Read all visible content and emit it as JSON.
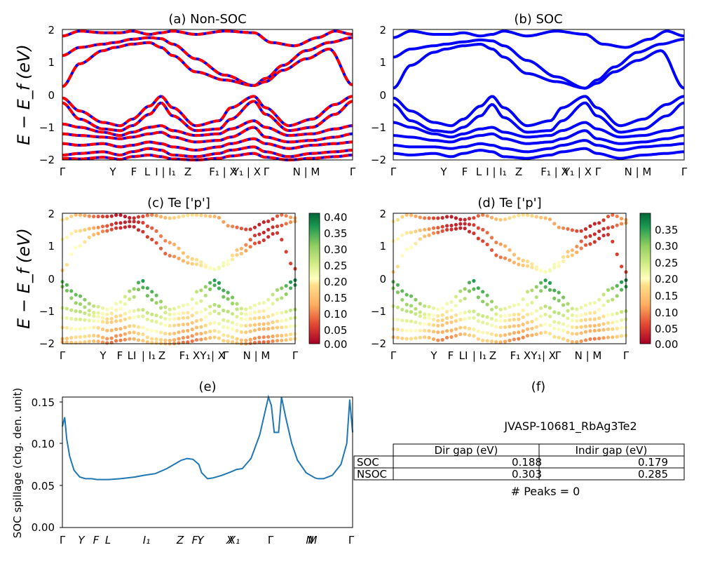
{
  "chart_data": [
    {
      "id": "a",
      "type": "line",
      "title": "(a) Non-SOC",
      "ylabel": "E − E_f (eV)",
      "ylim": [
        -2,
        2
      ],
      "yticks": [
        "2",
        "1",
        "0",
        "−1",
        "−2"
      ],
      "xticks": [
        "Γ",
        "Y",
        "F",
        "L",
        "I | I₁",
        "Z",
        "F₁ | X",
        "Y₁ | X",
        "Γ",
        "N | M",
        "Γ"
      ],
      "series": [
        {
          "color": "#0000ff",
          "style": "solid",
          "kind": "spin-up"
        },
        {
          "color": "#ff0000",
          "style": "dashed",
          "kind": "spin-down"
        }
      ],
      "bands": [
        {
          "x": [
            0.0,
            0.06,
            0.14,
            0.18,
            0.24,
            0.3,
            0.34,
            0.38,
            0.46,
            0.56,
            0.66,
            0.7,
            0.76,
            0.84,
            0.92,
            1.0
          ],
          "y": [
            1.2,
            1.45,
            1.55,
            1.6,
            1.7,
            1.75,
            1.72,
            1.55,
            1.1,
            0.6,
            0.28,
            0.5,
            0.9,
            1.35,
            1.6,
            1.75
          ]
        },
        {
          "x": [
            0.0,
            0.06,
            0.14,
            0.18,
            0.24,
            0.3,
            0.34,
            0.38,
            0.46,
            0.56,
            0.66,
            0.7,
            0.76,
            0.84,
            0.92,
            1.0
          ],
          "y": [
            0.25,
            0.95,
            1.35,
            1.45,
            1.55,
            1.6,
            1.45,
            1.2,
            0.7,
            0.45,
            0.28,
            0.4,
            0.75,
            1.1,
            1.4,
            0.3
          ]
        },
        {
          "x": [
            0.0,
            0.06,
            0.14,
            0.2,
            0.24,
            0.3,
            0.34,
            0.38,
            0.46,
            0.56,
            0.66,
            0.72,
            0.8,
            0.88,
            0.94,
            1.0
          ],
          "y": [
            1.8,
            1.95,
            1.9,
            1.9,
            1.95,
            1.85,
            1.9,
            1.95,
            1.85,
            1.95,
            1.9,
            1.6,
            1.5,
            1.75,
            1.95,
            1.85
          ]
        },
        {
          "x": [
            0.0,
            0.06,
            0.14,
            0.2,
            0.24,
            0.3,
            0.34,
            0.38,
            0.46,
            0.54,
            0.58,
            0.66,
            0.7,
            0.78,
            0.86,
            0.94,
            1.0
          ],
          "y": [
            -0.1,
            -0.5,
            -0.85,
            -0.95,
            -0.75,
            -0.35,
            -0.05,
            -0.4,
            -0.95,
            -0.8,
            -0.4,
            -0.05,
            -0.4,
            -0.95,
            -0.75,
            -0.3,
            -0.05
          ]
        },
        {
          "x": [
            0.0,
            0.06,
            0.14,
            0.2,
            0.24,
            0.3,
            0.34,
            0.38,
            0.46,
            0.54,
            0.58,
            0.66,
            0.7,
            0.78,
            0.86,
            0.94,
            1.0
          ],
          "y": [
            -0.25,
            -0.75,
            -1.05,
            -1.1,
            -0.95,
            -0.6,
            -0.25,
            -0.65,
            -1.1,
            -1.05,
            -0.75,
            -0.2,
            -0.6,
            -1.1,
            -1.0,
            -0.6,
            -0.2
          ]
        },
        {
          "x": [
            0.0,
            0.06,
            0.14,
            0.2,
            0.24,
            0.3,
            0.34,
            0.38,
            0.46,
            0.54,
            0.58,
            0.66,
            0.7,
            0.78,
            0.86,
            0.94,
            1.0
          ],
          "y": [
            -0.9,
            -1.0,
            -1.15,
            -1.25,
            -1.15,
            -1.0,
            -0.95,
            -1.1,
            -1.25,
            -1.2,
            -1.05,
            -0.8,
            -1.0,
            -1.25,
            -1.2,
            -1.05,
            -0.95
          ]
        },
        {
          "x": [
            0.0,
            0.06,
            0.14,
            0.2,
            0.24,
            0.3,
            0.34,
            0.38,
            0.46,
            0.54,
            0.58,
            0.66,
            0.7,
            0.78,
            0.86,
            0.94,
            1.0
          ],
          "y": [
            -1.2,
            -1.25,
            -1.3,
            -1.35,
            -1.3,
            -1.2,
            -1.15,
            -1.3,
            -1.45,
            -1.4,
            -1.3,
            -1.0,
            -1.3,
            -1.45,
            -1.4,
            -1.3,
            -1.2
          ]
        },
        {
          "x": [
            0.0,
            0.06,
            0.14,
            0.2,
            0.24,
            0.3,
            0.34,
            0.38,
            0.46,
            0.54,
            0.58,
            0.66,
            0.7,
            0.78,
            0.86,
            0.94,
            1.0
          ],
          "y": [
            -1.5,
            -1.55,
            -1.5,
            -1.6,
            -1.55,
            -1.45,
            -1.5,
            -1.6,
            -1.7,
            -1.6,
            -1.5,
            -1.35,
            -1.5,
            -1.65,
            -1.55,
            -1.5,
            -1.45
          ]
        },
        {
          "x": [
            0.0,
            0.06,
            0.14,
            0.2,
            0.24,
            0.3,
            0.34,
            0.38,
            0.46,
            0.54,
            0.58,
            0.66,
            0.7,
            0.78,
            0.86,
            0.94,
            1.0
          ],
          "y": [
            -1.85,
            -1.8,
            -1.75,
            -1.85,
            -1.75,
            -1.65,
            -1.7,
            -1.85,
            -1.9,
            -1.8,
            -1.7,
            -1.6,
            -1.75,
            -1.9,
            -1.8,
            -1.75,
            -1.7
          ]
        },
        {
          "x": [
            0.0,
            0.06,
            0.14,
            0.2,
            0.24,
            0.3,
            0.34,
            0.38,
            0.46,
            0.54,
            0.58,
            0.66,
            0.7,
            0.78,
            0.86,
            0.94,
            1.0
          ],
          "y": [
            -1.95,
            -1.97,
            -1.92,
            -1.98,
            -1.9,
            -1.85,
            -1.9,
            -1.97,
            -2.0,
            -1.95,
            -1.88,
            -1.8,
            -1.92,
            -2.0,
            -1.95,
            -1.9,
            -1.85
          ]
        }
      ]
    },
    {
      "id": "b",
      "type": "line",
      "title": "(b) SOC",
      "ylim": [
        -2,
        2
      ],
      "yticks": [
        "2",
        "1",
        "0",
        "−1",
        "−2"
      ],
      "xticks": [
        "Γ",
        "Y",
        "F",
        "L",
        "I | I₁",
        "Z",
        "F₁ | X",
        "Y₁ | X",
        "Γ",
        "N | M",
        "Γ"
      ],
      "series": [
        {
          "color": "#0000ff",
          "style": "solid"
        }
      ],
      "bands": [
        {
          "x": [
            0.0,
            0.06,
            0.14,
            0.18,
            0.24,
            0.3,
            0.34,
            0.38,
            0.46,
            0.56,
            0.66,
            0.7,
            0.76,
            0.84,
            0.92,
            1.0
          ],
          "y": [
            1.15,
            1.4,
            1.5,
            1.55,
            1.62,
            1.68,
            1.65,
            1.5,
            1.05,
            0.55,
            0.2,
            0.45,
            0.85,
            1.3,
            1.55,
            1.7
          ]
        },
        {
          "x": [
            0.0,
            0.06,
            0.14,
            0.18,
            0.24,
            0.3,
            0.34,
            0.38,
            0.46,
            0.56,
            0.66,
            0.7,
            0.76,
            0.84,
            0.92,
            1.0
          ],
          "y": [
            0.2,
            0.9,
            1.3,
            1.4,
            1.5,
            1.55,
            1.4,
            1.15,
            0.65,
            0.4,
            0.2,
            0.35,
            0.7,
            1.05,
            1.35,
            0.2
          ]
        },
        {
          "x": [
            0.0,
            0.06,
            0.14,
            0.2,
            0.24,
            0.3,
            0.34,
            0.38,
            0.46,
            0.56,
            0.66,
            0.72,
            0.8,
            0.88,
            0.94,
            1.0
          ],
          "y": [
            1.75,
            1.95,
            1.85,
            1.85,
            1.9,
            1.8,
            1.85,
            1.95,
            1.8,
            1.95,
            1.85,
            1.55,
            1.45,
            1.7,
            1.95,
            1.8
          ]
        },
        {
          "x": [
            0.0,
            0.06,
            0.14,
            0.2,
            0.24,
            0.3,
            0.34,
            0.38,
            0.46,
            0.54,
            0.58,
            0.66,
            0.7,
            0.78,
            0.86,
            0.94,
            1.0
          ],
          "y": [
            -0.1,
            -0.5,
            -0.85,
            -0.95,
            -0.75,
            -0.35,
            -0.05,
            -0.4,
            -0.95,
            -0.8,
            -0.4,
            -0.05,
            -0.4,
            -0.95,
            -0.75,
            -0.3,
            -0.05
          ]
        },
        {
          "x": [
            0.0,
            0.06,
            0.14,
            0.2,
            0.24,
            0.3,
            0.34,
            0.38,
            0.46,
            0.54,
            0.58,
            0.66,
            0.7,
            0.78,
            0.86,
            0.94,
            1.0
          ],
          "y": [
            -0.3,
            -0.8,
            -1.1,
            -1.15,
            -1.0,
            -0.65,
            -0.3,
            -0.7,
            -1.15,
            -1.1,
            -0.8,
            -0.25,
            -0.65,
            -1.15,
            -1.05,
            -0.65,
            -0.25
          ]
        },
        {
          "x": [
            0.0,
            0.06,
            0.14,
            0.2,
            0.24,
            0.3,
            0.34,
            0.38,
            0.46,
            0.54,
            0.58,
            0.66,
            0.7,
            0.78,
            0.86,
            0.94,
            1.0
          ],
          "y": [
            -0.85,
            -1.0,
            -1.2,
            -1.3,
            -1.2,
            -1.05,
            -1.0,
            -1.15,
            -1.3,
            -1.25,
            -1.1,
            -0.85,
            -1.05,
            -1.3,
            -1.25,
            -1.1,
            -1.0
          ]
        },
        {
          "x": [
            0.0,
            0.06,
            0.14,
            0.2,
            0.24,
            0.3,
            0.34,
            0.38,
            0.46,
            0.54,
            0.58,
            0.66,
            0.7,
            0.78,
            0.86,
            0.94,
            1.0
          ],
          "y": [
            -1.25,
            -1.3,
            -1.4,
            -1.45,
            -1.35,
            -1.25,
            -1.2,
            -1.35,
            -1.5,
            -1.45,
            -1.35,
            -1.1,
            -1.35,
            -1.5,
            -1.45,
            -1.35,
            -1.25
          ]
        },
        {
          "x": [
            0.0,
            0.06,
            0.14,
            0.2,
            0.24,
            0.3,
            0.34,
            0.38,
            0.46,
            0.54,
            0.58,
            0.66,
            0.7,
            0.78,
            0.86,
            0.94,
            1.0
          ],
          "y": [
            -1.55,
            -1.6,
            -1.6,
            -1.65,
            -1.6,
            -1.5,
            -1.55,
            -1.65,
            -1.75,
            -1.65,
            -1.55,
            -1.4,
            -1.55,
            -1.7,
            -1.6,
            -1.55,
            -1.5
          ]
        },
        {
          "x": [
            0.0,
            0.06,
            0.14,
            0.2,
            0.24,
            0.3,
            0.34,
            0.38,
            0.46,
            0.54,
            0.58,
            0.66,
            0.7,
            0.78,
            0.86,
            0.94,
            1.0
          ],
          "y": [
            -1.8,
            -1.85,
            -1.8,
            -1.9,
            -1.8,
            -1.7,
            -1.75,
            -1.9,
            -1.95,
            -1.85,
            -1.75,
            -1.65,
            -1.8,
            -1.95,
            -1.85,
            -1.8,
            -1.75
          ]
        }
      ]
    },
    {
      "id": "c",
      "type": "scatter",
      "title": "(c)  Te ['p']",
      "ylabel": "E − E_f (eV)",
      "ylim": [
        -2,
        2
      ],
      "yticks": [
        "2",
        "1",
        "0",
        "−1",
        "−2"
      ],
      "xticks": [
        "Γ",
        "Y",
        "F",
        "LI",
        "| I₁",
        "Z",
        "F₁",
        "X",
        "Y₁",
        "| X",
        "Γ",
        "N | M",
        "Γ"
      ],
      "colormap": "RdYlGn",
      "clim": [
        0.0,
        0.41
      ],
      "colorbar_ticks": [
        "0.40",
        "0.35",
        "0.30",
        "0.25",
        "0.20",
        "0.15",
        "0.10",
        "0.05",
        "0.00"
      ]
    },
    {
      "id": "d",
      "type": "scatter",
      "title": "(d) Te ['p']",
      "ylim": [
        -2,
        2
      ],
      "yticks": [
        "2",
        "1",
        "0",
        "−1",
        "−2"
      ],
      "xticks": [
        "Γ",
        "Y",
        "F",
        "LI",
        "| I₁",
        "Z",
        "F₁",
        "X",
        "Y₁",
        "| X",
        "Γ",
        "N | M",
        "Γ"
      ],
      "colormap": "RdYlGn",
      "clim": [
        0.0,
        0.39
      ],
      "colorbar_ticks": [
        "0.35",
        "0.30",
        "0.25",
        "0.20",
        "0.15",
        "0.10",
        "0.05",
        "0.00"
      ]
    },
    {
      "id": "e",
      "type": "line",
      "title": "(e)",
      "ylabel": "SOC spillage (chg. den. unit)",
      "ylim": [
        0.0,
        0.155
      ],
      "yticks": [
        "0.15",
        "0.10",
        "0.05",
        "0.00"
      ],
      "xticks": [
        "Γ",
        "Y",
        "F",
        "L",
        "I₁",
        "Z",
        "F₁",
        "X₁",
        "Γ",
        "M",
        "Γ"
      ],
      "xticks_extra": [
        "Y",
        "X",
        "N"
      ],
      "series": [
        {
          "color": "#1f77b4",
          "x": [
            0.0,
            0.008,
            0.015,
            0.025,
            0.04,
            0.06,
            0.08,
            0.1,
            0.12,
            0.14,
            0.16,
            0.2,
            0.25,
            0.28,
            0.3,
            0.32,
            0.36,
            0.4,
            0.41,
            0.43,
            0.45,
            0.47,
            0.48,
            0.5,
            0.52,
            0.55,
            0.58,
            0.6,
            0.62,
            0.65,
            0.68,
            0.7,
            0.71,
            0.72,
            0.73,
            0.745,
            0.755,
            0.77,
            0.79,
            0.81,
            0.84,
            0.87,
            0.88,
            0.9,
            0.93,
            0.96,
            0.98,
            0.99,
            1.0
          ],
          "y": [
            0.12,
            0.131,
            0.105,
            0.085,
            0.068,
            0.06,
            0.058,
            0.058,
            0.057,
            0.057,
            0.057,
            0.058,
            0.06,
            0.062,
            0.063,
            0.064,
            0.07,
            0.078,
            0.08,
            0.082,
            0.081,
            0.075,
            0.065,
            0.058,
            0.059,
            0.062,
            0.066,
            0.069,
            0.07,
            0.082,
            0.11,
            0.14,
            0.155,
            0.145,
            0.113,
            0.113,
            0.155,
            0.13,
            0.1,
            0.08,
            0.065,
            0.059,
            0.058,
            0.058,
            0.062,
            0.075,
            0.1,
            0.152,
            0.113
          ]
        }
      ]
    },
    {
      "id": "f",
      "type": "table",
      "title": "(f)",
      "caption": "JVASP-10681_RbAg3Te2",
      "columns": [
        "",
        "Dir gap (eV)",
        "Indir gap (eV)"
      ],
      "rows": [
        [
          "SOC",
          "0.188",
          "0.179"
        ],
        [
          "NSOC",
          "0.303",
          "0.285"
        ]
      ],
      "footer": "# Peaks = 0"
    }
  ]
}
